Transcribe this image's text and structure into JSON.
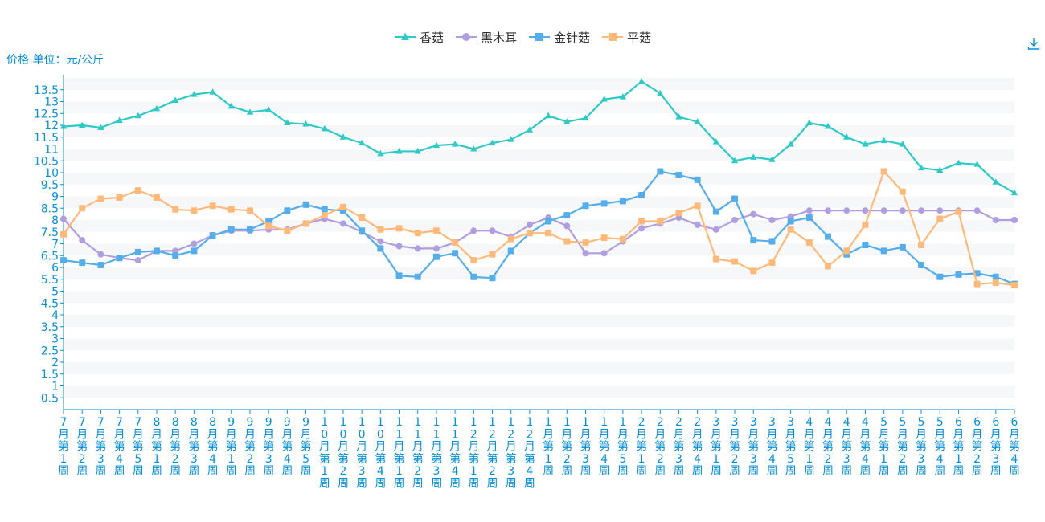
{
  "unit_label": "价格 单位：元/公斤",
  "colors": {
    "axis": "#0a8fd3",
    "band": "#f6f7f9",
    "series": [
      "#2fc9c6",
      "#b09ee0",
      "#55aeea",
      "#ffb97a"
    ]
  },
  "icons": {
    "download": "download-icon"
  },
  "chart_data": {
    "type": "line",
    "title": "",
    "ylabel": "价格 单位：元/公斤",
    "xlabel": "",
    "ylim": [
      0,
      14
    ],
    "yticks": [
      0.5,
      1,
      1.5,
      2,
      2.5,
      3,
      3.5,
      4,
      4.5,
      5,
      5.5,
      6,
      6.5,
      7,
      7.5,
      8,
      8.5,
      9,
      9.5,
      10,
      10.5,
      11,
      11.5,
      12,
      12.5,
      13,
      13.5
    ],
    "ytick_labels": [
      "0.5",
      "1",
      "1.5",
      "2",
      "2.5",
      "3",
      "3.5",
      "4",
      "4.5",
      "5",
      "5.5",
      "6",
      "6.5",
      "7",
      "7.5",
      "8",
      "8.5",
      "9",
      "9.5",
      "10",
      "10.5",
      "11",
      "11.5",
      "12",
      "12.5",
      "13",
      "13.5"
    ],
    "legend_position": "top-center",
    "categories": [
      "7月第1周",
      "7月第2周",
      "7月第3周",
      "7月第4周",
      "7月第5周",
      "8月第1周",
      "8月第2周",
      "8月第3周",
      "8月第4周",
      "9月第1周",
      "9月第2周",
      "9月第3周",
      "9月第4周",
      "9月第5周",
      "10月第1周",
      "10月第2周",
      "10月第3周",
      "10月第4周",
      "11月第1周",
      "11月第2周",
      "11月第3周",
      "11月第4周",
      "12月第1周",
      "12月第2周",
      "12月第3周",
      "12月第4周",
      "1月第1周",
      "1月第2周",
      "1月第3周",
      "1月第4周",
      "1月第5周",
      "2月第1周",
      "2月第2周",
      "2月第3周",
      "2月第4周",
      "3月第1周",
      "3月第2周",
      "3月第3周",
      "3月第4周",
      "3月第5周",
      "4月第1周",
      "4月第2周",
      "4月第3周",
      "4月第4周",
      "5月第1周",
      "5月第2周",
      "5月第3周",
      "5月第4周",
      "6月第1周",
      "6月第2周",
      "6月第3周",
      "6月第4周"
    ],
    "series": [
      {
        "name": "香菇",
        "marker": "triangle",
        "values": [
          11.95,
          12.0,
          11.9,
          12.2,
          12.4,
          12.7,
          13.05,
          13.3,
          13.4,
          12.8,
          12.55,
          12.65,
          12.1,
          12.05,
          11.85,
          11.5,
          11.25,
          10.8,
          10.9,
          10.9,
          11.15,
          11.2,
          11.0,
          11.25,
          11.4,
          11.8,
          12.4,
          12.15,
          12.3,
          13.1,
          13.2,
          13.85,
          13.35,
          12.35,
          12.15,
          11.3,
          10.5,
          10.65,
          10.55,
          11.2,
          12.1,
          11.95,
          11.5,
          11.2,
          11.35,
          11.2,
          10.2,
          10.1,
          10.4,
          10.35,
          9.6,
          9.15
        ]
      },
      {
        "name": "黑木耳",
        "marker": "circle",
        "values": [
          8.05,
          7.15,
          6.55,
          6.4,
          6.3,
          6.7,
          6.7,
          7.0,
          7.35,
          7.55,
          7.55,
          7.6,
          7.6,
          7.85,
          8.05,
          7.85,
          7.5,
          7.1,
          6.9,
          6.8,
          6.8,
          7.05,
          7.55,
          7.55,
          7.3,
          7.8,
          8.1,
          7.75,
          6.6,
          6.6,
          7.1,
          7.65,
          7.85,
          8.1,
          7.8,
          7.6,
          8.0,
          8.25,
          8.0,
          8.15,
          8.4,
          8.4,
          8.4,
          8.4,
          8.4,
          8.4,
          8.4,
          8.4,
          8.4,
          8.4,
          8.0,
          8.0
        ]
      },
      {
        "name": "金针菇",
        "marker": "square",
        "values": [
          6.3,
          6.2,
          6.1,
          6.4,
          6.65,
          6.7,
          6.5,
          6.7,
          7.35,
          7.6,
          7.6,
          7.95,
          8.4,
          8.65,
          8.45,
          8.4,
          7.55,
          6.8,
          5.65,
          5.6,
          6.45,
          6.6,
          5.6,
          5.55,
          6.7,
          7.45,
          7.95,
          8.2,
          8.6,
          8.7,
          8.8,
          9.05,
          10.05,
          9.9,
          9.7,
          8.35,
          8.9,
          7.15,
          7.1,
          7.95,
          8.1,
          7.3,
          6.55,
          6.95,
          6.7,
          6.85,
          6.1,
          5.6,
          5.7,
          5.75,
          5.6,
          5.3
        ]
      },
      {
        "name": "平菇",
        "marker": "square",
        "values": [
          7.4,
          8.5,
          8.9,
          8.95,
          9.25,
          8.95,
          8.45,
          8.4,
          8.6,
          8.45,
          8.4,
          7.75,
          7.55,
          7.85,
          8.2,
          8.55,
          8.1,
          7.6,
          7.65,
          7.45,
          7.55,
          7.05,
          6.3,
          6.55,
          7.2,
          7.45,
          7.45,
          7.1,
          7.05,
          7.25,
          7.2,
          7.95,
          7.95,
          8.3,
          8.6,
          6.35,
          6.25,
          5.85,
          6.2,
          7.6,
          7.05,
          6.05,
          6.7,
          7.8,
          10.05,
          9.2,
          6.95,
          8.05,
          8.35,
          5.3,
          5.35,
          5.25
        ]
      }
    ]
  }
}
